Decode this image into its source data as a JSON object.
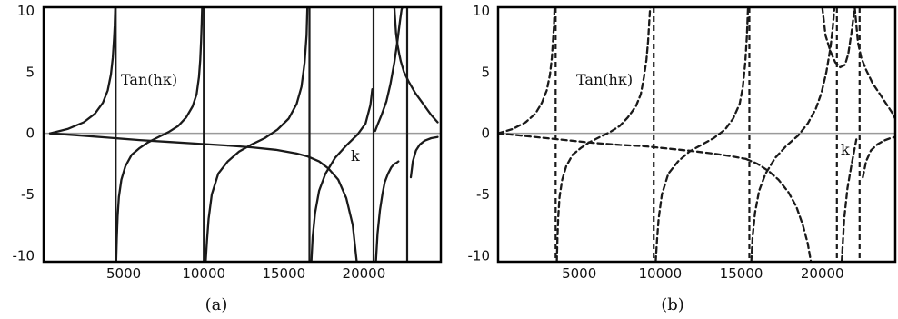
{
  "chart_data": [
    {
      "type": "line",
      "panel_label": "(a)",
      "line_style": "solid",
      "line_color": "#1a1a1a",
      "xlim": [
        0,
        24800
      ],
      "ylim": [
        -10.5,
        10.3
      ],
      "x_ticks": [
        5000,
        10000,
        15000,
        20000
      ],
      "y_ticks": [
        10,
        5,
        0,
        -5,
        -10
      ],
      "annotations": [
        "Tan(hκ)",
        "k"
      ],
      "asymptotes_x": [
        4500,
        10000,
        16600,
        20600,
        22700
      ],
      "series": [
        {
          "segments": [
            {
              "x": [
                400,
                1500,
                2500,
                3200,
                3700,
                4000,
                4200,
                4320,
                4400,
                4440,
                4470
              ],
              "y": [
                0,
                0.35,
                0.9,
                1.6,
                2.5,
                3.5,
                4.8,
                6.2,
                7.8,
                8.8,
                10.3
              ]
            },
            {
              "x": [
                4530,
                4570,
                4620,
                4700,
                4850,
                5100,
                5500,
                6000,
                6500,
                7100,
                7800,
                8400,
                8900,
                9300,
                9550,
                9700,
                9780,
                9830,
                9870,
                9900
              ],
              "y": [
                -10.5,
                -8.6,
                -6.8,
                -5.2,
                -3.8,
                -2.7,
                -1.75,
                -1.2,
                -0.75,
                -0.35,
                0.1,
                0.6,
                1.3,
                2.2,
                3.2,
                4.6,
                6,
                7.5,
                9,
                10.3
              ]
            },
            {
              "x": [
                10120,
                10200,
                10300,
                10500,
                10900,
                11500,
                12200,
                13000,
                13800,
                14600,
                15300,
                15800,
                16100,
                16300,
                16420,
                16470
              ],
              "y": [
                -10.5,
                -8.8,
                -7,
                -5,
                -3.3,
                -2.3,
                -1.5,
                -0.9,
                -0.4,
                0.3,
                1.2,
                2.4,
                3.8,
                5.8,
                8,
                10.3
              ]
            },
            {
              "x": [
                16720,
                16800,
                16950,
                17200,
                17600,
                18200,
                18900,
                19600,
                20100,
                20400,
                20520
              ],
              "y": [
                -10.5,
                -8.5,
                -6.5,
                -4.7,
                -3.3,
                -2,
                -1,
                -0.1,
                0.8,
                2.3,
                3.6
              ]
            },
            {
              "x": [
                20700,
                20850,
                21100,
                21400,
                21650,
                21900,
                22100,
                22250,
                22350,
                22400
              ],
              "y": [
                0.2,
                0.7,
                1.5,
                2.6,
                4,
                5.8,
                7.6,
                9.2,
                10.1,
                10.3
              ]
            },
            {
              "x": [
                22930,
                23050,
                23250,
                23500,
                23800,
                24200,
                24600
              ],
              "y": [
                -3.6,
                -2.3,
                -1.4,
                -0.9,
                -0.6,
                -0.4,
                -0.3
              ]
            }
          ]
        },
        {
          "segments": [
            {
              "x": [
                400,
                2000,
                4000,
                6000,
                8000,
                10000,
                11500
              ],
              "y": [
                0,
                -0.15,
                -0.35,
                -0.55,
                -0.72,
                -0.88,
                -1
              ]
            },
            {
              "x": [
                11500,
                13000,
                14500,
                15800,
                16500,
                17200,
                17800,
                18400,
                18900,
                19300,
                19550
              ],
              "y": [
                -1,
                -1.15,
                -1.35,
                -1.65,
                -1.9,
                -2.3,
                -2.9,
                -3.8,
                -5.3,
                -7.5,
                -10.5
              ]
            },
            {
              "x": [
                20750,
                20850,
                21000,
                21150,
                21300,
                21500,
                21700,
                21900,
                22050,
                22150
              ],
              "y": [
                -10.5,
                -8.2,
                -6.3,
                -5,
                -4,
                -3.3,
                -2.8,
                -2.5,
                -2.4,
                -2.3
              ]
            },
            {
              "x": [
                21900,
                22000,
                22100,
                22200,
                22300,
                22500,
                22800,
                23200,
                23700,
                24200,
                24600
              ],
              "y": [
                10.3,
                8.2,
                7.2,
                6.5,
                5.9,
                5,
                4.2,
                3.3,
                2.4,
                1.5,
                0.9
              ]
            }
          ]
        }
      ]
    },
    {
      "type": "line",
      "panel_label": "(b)",
      "line_style": "dashed",
      "line_color": "#1a1a1a",
      "xlim": [
        0,
        24500
      ],
      "ylim": [
        -10.5,
        10.3
      ],
      "x_ticks": [
        5000,
        10000,
        15000,
        20000
      ],
      "y_ticks": [
        10,
        5,
        0,
        -5,
        -10
      ],
      "annotations": [
        "Tan(hκ)",
        "k"
      ],
      "asymptotes_x": [
        3550,
        9600,
        15500,
        20900,
        22300
      ],
      "series": [
        {
          "segments": [
            {
              "x": [
                0,
                900,
                1700,
                2300,
                2700,
                3000,
                3200,
                3320,
                3400,
                3450,
                3480
              ],
              "y": [
                0,
                0.35,
                0.9,
                1.6,
                2.5,
                3.5,
                4.8,
                6.2,
                7.8,
                8.8,
                10.3
              ]
            },
            {
              "x": [
                3620,
                3660,
                3710,
                3790,
                3950,
                4200,
                4600,
                5100,
                5600,
                6200,
                6900,
                7500,
                8000,
                8500,
                8800,
                9000,
                9150,
                9250,
                9320,
                9380
              ],
              "y": [
                -10.5,
                -8.6,
                -6.8,
                -5.2,
                -3.8,
                -2.7,
                -1.75,
                -1.2,
                -0.75,
                -0.35,
                0.1,
                0.6,
                1.3,
                2.2,
                3.2,
                4.6,
                6,
                7.5,
                9,
                10.3
              ]
            },
            {
              "x": [
                9720,
                9800,
                9900,
                10100,
                10500,
                11100,
                11800,
                12600,
                13300,
                14000,
                14500,
                14900,
                15100,
                15250,
                15350,
                15420
              ],
              "y": [
                -10.5,
                -8.8,
                -7,
                -5,
                -3.3,
                -2.3,
                -1.5,
                -0.9,
                -0.4,
                0.3,
                1.2,
                2.4,
                3.8,
                5.8,
                8,
                10.3
              ]
            },
            {
              "x": [
                15620,
                15700,
                15850,
                16100,
                16500,
                17100,
                17800,
                18500,
                19100,
                19600,
                19950,
                20250,
                20500,
                20650,
                20750
              ],
              "y": [
                -10.5,
                -8.5,
                -6.5,
                -4.7,
                -3.3,
                -2,
                -1,
                -0.2,
                0.8,
                2,
                3.3,
                5,
                7,
                8.7,
                10.3
              ]
            },
            {
              "x": [
                21200,
                21350,
                21550,
                21800,
                22000,
                22100
              ],
              "y": [
                -10.5,
                -7,
                -4.5,
                -2.6,
                -1.2,
                -0.5
              ]
            },
            {
              "x": [
                22500,
                22700,
                23000,
                23400,
                23800,
                24200,
                24500
              ],
              "y": [
                -3.6,
                -2.3,
                -1.4,
                -0.9,
                -0.6,
                -0.4,
                -0.3
              ]
            }
          ]
        },
        {
          "segments": [
            {
              "x": [
                0,
                1500,
                3000,
                4500,
                6000,
                7500,
                9000,
                10500,
                12000,
                13500,
                14500,
                15300
              ],
              "y": [
                0,
                -0.2,
                -0.4,
                -0.6,
                -0.8,
                -0.95,
                -1.05,
                -1.25,
                -1.45,
                -1.7,
                -1.9,
                -2.1
              ]
            },
            {
              "x": [
                15300,
                16000,
                16700,
                17300,
                17900,
                18400,
                18800,
                19100,
                19300
              ],
              "y": [
                -2.1,
                -2.5,
                -3.1,
                -3.8,
                -4.8,
                -6,
                -7.5,
                -9,
                -10.5
              ]
            },
            {
              "x": [
                20000,
                20200,
                20500,
                20800,
                21100,
                21400,
                21600,
                21800,
                22000
              ],
              "y": [
                10.3,
                8,
                6.7,
                5.8,
                5.4,
                5.6,
                6.5,
                8.2,
                10.3
              ]
            },
            {
              "x": [
                22000,
                22200,
                22400,
                22700,
                23100,
                23500,
                23900,
                24300,
                24500
              ],
              "y": [
                10.3,
                7.4,
                6.2,
                5.2,
                4.1,
                3.3,
                2.5,
                1.7,
                1.2
              ]
            }
          ]
        }
      ]
    }
  ]
}
